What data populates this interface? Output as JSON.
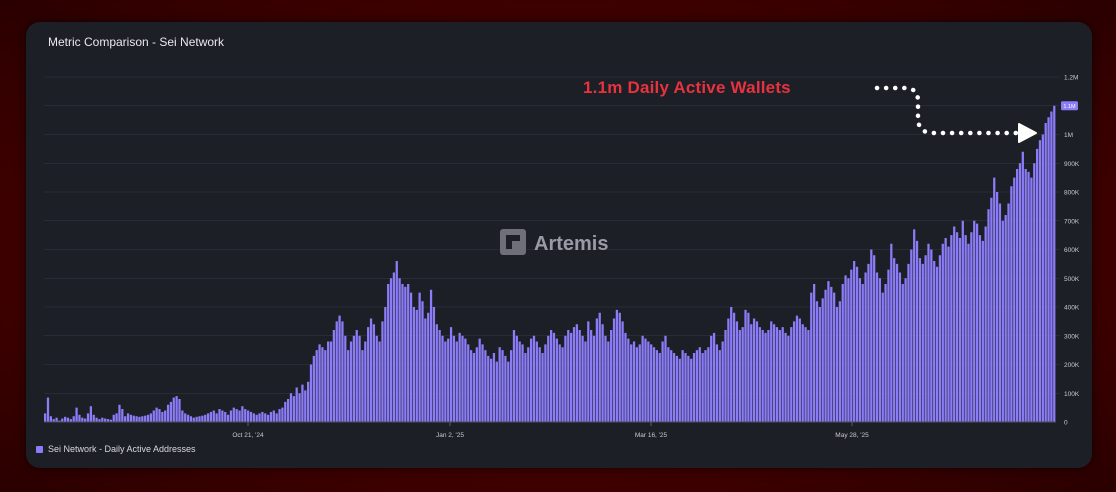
{
  "title": "Metric Comparison - Sei Network",
  "annotation": "1.1m Daily Active Wallets",
  "watermark": "Artemis",
  "colors": {
    "bar": "#8b7cf8",
    "background": "#1d1f26",
    "annotation": "#e8323f",
    "grid": "#353845"
  },
  "chart_data": {
    "type": "bar",
    "x_ticks": [
      "Oct 21, '24",
      "Jan 2, '25",
      "Mar 16, '25",
      "May 28, '25"
    ],
    "y_ticks": [
      "0",
      "100K",
      "200K",
      "300K",
      "400K",
      "500K",
      "600K",
      "700K",
      "800K",
      "900K",
      "1M",
      "1.1M",
      "1.2M"
    ],
    "ylim": [
      0,
      1200000
    ],
    "grid": true,
    "legend": "bottom-left",
    "current_value_label": "1.1M",
    "series": [
      {
        "name": "Sei Network - Daily Active Addresses",
        "values": [
          30000,
          85000,
          20000,
          10000,
          15000,
          5000,
          12000,
          18000,
          15000,
          10000,
          20000,
          50000,
          25000,
          15000,
          12000,
          30000,
          55000,
          25000,
          15000,
          10000,
          15000,
          12000,
          10000,
          8000,
          25000,
          30000,
          60000,
          45000,
          20000,
          30000,
          25000,
          22000,
          20000,
          18000,
          20000,
          22000,
          25000,
          30000,
          40000,
          50000,
          45000,
          35000,
          40000,
          60000,
          70000,
          85000,
          90000,
          80000,
          40000,
          30000,
          25000,
          20000,
          15000,
          18000,
          20000,
          22000,
          25000,
          30000,
          35000,
          40000,
          30000,
          45000,
          40000,
          35000,
          25000,
          40000,
          50000,
          45000,
          40000,
          55000,
          45000,
          40000,
          35000,
          30000,
          25000,
          30000,
          35000,
          30000,
          25000,
          35000,
          40000,
          30000,
          45000,
          50000,
          70000,
          80000,
          100000,
          90000,
          120000,
          100000,
          130000,
          110000,
          140000,
          200000,
          230000,
          250000,
          270000,
          260000,
          250000,
          280000,
          280000,
          320000,
          350000,
          370000,
          350000,
          300000,
          250000,
          280000,
          300000,
          320000,
          300000,
          250000,
          280000,
          330000,
          360000,
          340000,
          300000,
          280000,
          350000,
          400000,
          480000,
          500000,
          520000,
          560000,
          500000,
          480000,
          470000,
          480000,
          450000,
          400000,
          390000,
          450000,
          420000,
          360000,
          380000,
          460000,
          400000,
          340000,
          320000,
          300000,
          280000,
          290000,
          330000,
          300000,
          280000,
          310000,
          300000,
          290000,
          270000,
          250000,
          240000,
          260000,
          290000,
          270000,
          250000,
          230000,
          220000,
          240000,
          210000,
          260000,
          250000,
          230000,
          210000,
          250000,
          320000,
          300000,
          280000,
          270000,
          240000,
          260000,
          290000,
          300000,
          280000,
          260000,
          240000,
          270000,
          300000,
          320000,
          310000,
          290000,
          270000,
          260000,
          300000,
          320000,
          310000,
          330000,
          340000,
          320000,
          300000,
          280000,
          350000,
          320000,
          300000,
          360000,
          380000,
          340000,
          300000,
          280000,
          320000,
          360000,
          390000,
          380000,
          350000,
          310000,
          290000,
          270000,
          280000,
          260000,
          270000,
          300000,
          290000,
          280000,
          270000,
          260000,
          250000,
          240000,
          280000,
          300000,
          260000,
          250000,
          240000,
          230000,
          220000,
          250000,
          240000,
          230000,
          220000,
          240000,
          250000,
          260000,
          240000,
          250000,
          260000,
          300000,
          310000,
          270000,
          250000,
          280000,
          320000,
          360000,
          400000,
          380000,
          350000,
          320000,
          330000,
          390000,
          380000,
          340000,
          360000,
          350000,
          330000,
          320000,
          310000,
          320000,
          350000,
          340000,
          330000,
          320000,
          330000,
          310000,
          300000,
          330000,
          350000,
          370000,
          360000,
          340000,
          330000,
          320000,
          450000,
          480000,
          420000,
          400000,
          430000,
          460000,
          490000,
          470000,
          450000,
          400000,
          420000,
          480000,
          510000,
          500000,
          530000,
          560000,
          540000,
          500000,
          480000,
          520000,
          550000,
          600000,
          580000,
          520000,
          500000,
          450000,
          480000,
          530000,
          620000,
          570000,
          550000,
          520000,
          480000,
          500000,
          550000,
          600000,
          670000,
          630000,
          570000,
          550000,
          580000,
          620000,
          600000,
          560000,
          540000,
          580000,
          620000,
          640000,
          610000,
          650000,
          680000,
          660000,
          640000,
          700000,
          650000,
          620000,
          660000,
          700000,
          690000,
          650000,
          630000,
          680000,
          740000,
          780000,
          850000,
          800000,
          760000,
          700000,
          720000,
          760000,
          820000,
          850000,
          880000,
          900000,
          940000,
          880000,
          870000,
          850000,
          900000,
          950000,
          980000,
          1000000,
          1040000,
          1060000,
          1080000,
          1100000
        ]
      }
    ]
  }
}
